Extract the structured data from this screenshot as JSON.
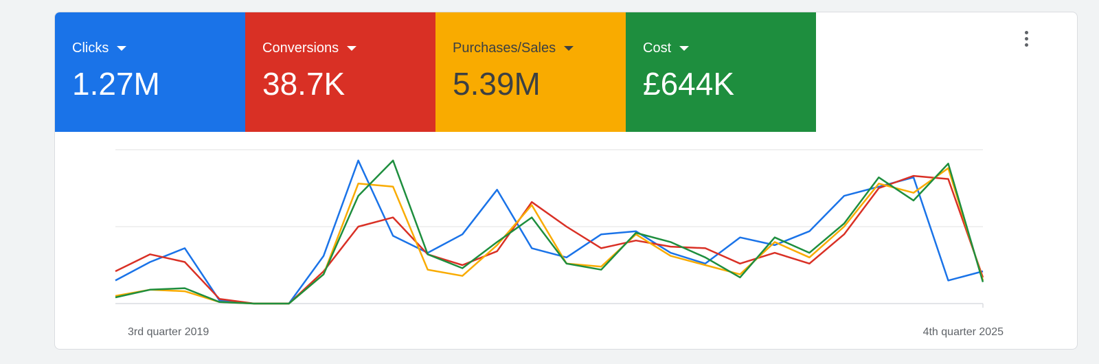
{
  "metrics": [
    {
      "label": "Clicks",
      "value": "1.27M",
      "color": "#1a73e8",
      "text_color": "#ffffff"
    },
    {
      "label": "Conversions",
      "value": "38.7K",
      "color": "#d93025",
      "text_color": "#ffffff"
    },
    {
      "label": "Purchases/Sales",
      "value": "5.39M",
      "color": "#f9ab00",
      "text_color": "#3c4043"
    },
    {
      "label": "Cost",
      "value": "£644K",
      "color": "#1e8e3e",
      "text_color": "#ffffff"
    }
  ],
  "menu_icon": "more-vert-icon",
  "chart_data": {
    "type": "line",
    "x_labels": [
      "3rd quarter 2019",
      "4th quarter 2025"
    ],
    "x_count": 26,
    "ylim": [
      0,
      100
    ],
    "grid": true,
    "legend": "none",
    "series": [
      {
        "color": "#1a73e8",
        "values": [
          15,
          27,
          36,
          2,
          0,
          0,
          31,
          93,
          44,
          33,
          45,
          74,
          36,
          30,
          45,
          47,
          33,
          26,
          43,
          38,
          47,
          70,
          76,
          82,
          15,
          21
        ]
      },
      {
        "color": "#d93025",
        "values": [
          21,
          32,
          27,
          3,
          0,
          0,
          21,
          50,
          56,
          32,
          25,
          34,
          66,
          50,
          36,
          41,
          37,
          36,
          26,
          33,
          26,
          45,
          75,
          83,
          81,
          17
        ]
      },
      {
        "color": "#f9ab00",
        "values": [
          5,
          9,
          8,
          1,
          0,
          0,
          19,
          78,
          76,
          22,
          18,
          38,
          64,
          26,
          24,
          45,
          31,
          25,
          19,
          40,
          30,
          50,
          78,
          72,
          88,
          15
        ]
      },
      {
        "color": "#1e8e3e",
        "values": [
          4,
          9,
          10,
          1,
          0,
          0,
          19,
          70,
          93,
          32,
          23,
          40,
          56,
          26,
          22,
          46,
          40,
          30,
          17,
          43,
          33,
          52,
          82,
          67,
          91,
          14
        ]
      }
    ]
  }
}
